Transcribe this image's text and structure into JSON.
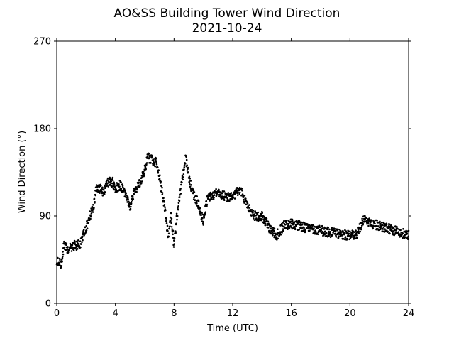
{
  "chart_data": {
    "type": "scatter",
    "title": "AO&SS Building Tower Wind Direction",
    "subtitle": "2021-10-24",
    "xlabel": "Time (UTC)",
    "ylabel": "Wind Direction (°)",
    "xlim": [
      0,
      24
    ],
    "ylim": [
      0,
      270
    ],
    "xticks": [
      0,
      4,
      8,
      12,
      16,
      20,
      24
    ],
    "yticks": [
      0,
      90,
      180,
      270
    ],
    "grid": false,
    "marker_color": "#000000",
    "anchors": [
      [
        0.0,
        45
      ],
      [
        0.3,
        40
      ],
      [
        0.5,
        60
      ],
      [
        0.8,
        55
      ],
      [
        1.2,
        60
      ],
      [
        1.6,
        60
      ],
      [
        2.0,
        78
      ],
      [
        2.5,
        100
      ],
      [
        2.7,
        118
      ],
      [
        3.0,
        118
      ],
      [
        3.2,
        115
      ],
      [
        3.5,
        125
      ],
      [
        3.8,
        125
      ],
      [
        4.0,
        118
      ],
      [
        4.3,
        122
      ],
      [
        4.6,
        115
      ],
      [
        5.0,
        100
      ],
      [
        5.3,
        115
      ],
      [
        5.7,
        125
      ],
      [
        6.0,
        138
      ],
      [
        6.2,
        150
      ],
      [
        6.5,
        148
      ],
      [
        6.8,
        145
      ],
      [
        7.0,
        130
      ],
      [
        7.3,
        105
      ],
      [
        7.6,
        70
      ],
      [
        7.8,
        90
      ],
      [
        8.0,
        60
      ],
      [
        8.2,
        90
      ],
      [
        8.5,
        120
      ],
      [
        8.8,
        150
      ],
      [
        9.0,
        130
      ],
      [
        9.3,
        112
      ],
      [
        9.6,
        105
      ],
      [
        10.0,
        85
      ],
      [
        10.3,
        110
      ],
      [
        10.7,
        110
      ],
      [
        11.0,
        115
      ],
      [
        11.5,
        110
      ],
      [
        12.0,
        110
      ],
      [
        12.5,
        118
      ],
      [
        13.0,
        100
      ],
      [
        13.5,
        90
      ],
      [
        14.0,
        90
      ],
      [
        14.5,
        78
      ],
      [
        15.0,
        70
      ],
      [
        15.5,
        80
      ],
      [
        16.0,
        82
      ],
      [
        17.0,
        78
      ],
      [
        18.0,
        75
      ],
      [
        19.0,
        72
      ],
      [
        20.0,
        70
      ],
      [
        20.5,
        72
      ],
      [
        21.0,
        88
      ],
      [
        21.5,
        82
      ],
      [
        22.0,
        80
      ],
      [
        23.0,
        75
      ],
      [
        24.0,
        70
      ]
    ],
    "samples_per_hour": 60
  }
}
